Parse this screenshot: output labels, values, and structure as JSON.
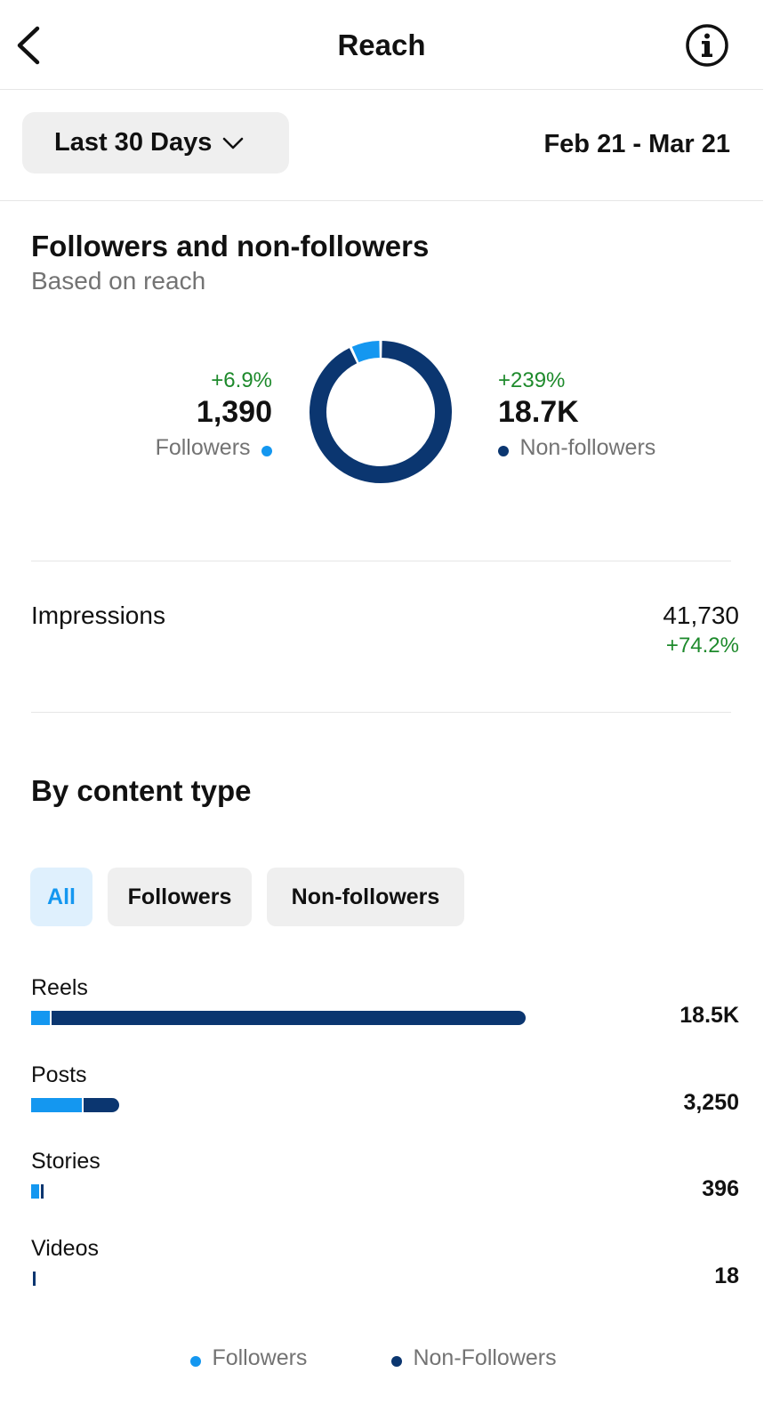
{
  "header": {
    "title": "Reach",
    "back_icon": "chevron-left-icon",
    "info_icon": "info-circle-icon"
  },
  "filter": {
    "range_label": "Last 30 Days",
    "date_range": "Feb 21 - Mar 21"
  },
  "followers_section": {
    "title": "Followers and non-followers",
    "subtitle": "Based on reach",
    "followers": {
      "change": "+6.9%",
      "value": "1,390",
      "label": "Followers"
    },
    "non_followers": {
      "change": "+239%",
      "value": "18.7K",
      "label": "Non-followers"
    }
  },
  "impressions": {
    "label": "Impressions",
    "value": "41,730",
    "change": "+74.2%"
  },
  "content_type": {
    "title": "By content type",
    "tabs": [
      "All",
      "Followers",
      "Non-followers"
    ],
    "active_tab": "All",
    "rows": [
      {
        "label": "Reels",
        "value": "18.5K"
      },
      {
        "label": "Posts",
        "value": "3,250"
      },
      {
        "label": "Stories",
        "value": "396"
      },
      {
        "label": "Videos",
        "value": "18"
      }
    ],
    "legend": [
      "Followers",
      "Non-Followers"
    ]
  },
  "colors": {
    "followers": "#1497f0",
    "non_followers": "#0b3670",
    "positive": "#1e8a2c",
    "active_tab_bg": "#dff0fd",
    "active_tab_text": "#1497f0"
  },
  "chart_data": [
    {
      "type": "pie",
      "categories": [
        "Followers",
        "Non-followers"
      ],
      "values": [
        1390,
        18700
      ]
    },
    {
      "type": "bar",
      "categories": [
        "Reels",
        "Posts",
        "Stories",
        "Videos"
      ],
      "series": [
        {
          "name": "Followers",
          "values": [
            700,
            1900,
            300,
            0
          ]
        },
        {
          "name": "Non-Followers",
          "values": [
            17800,
            1350,
            96,
            18
          ]
        }
      ]
    }
  ]
}
